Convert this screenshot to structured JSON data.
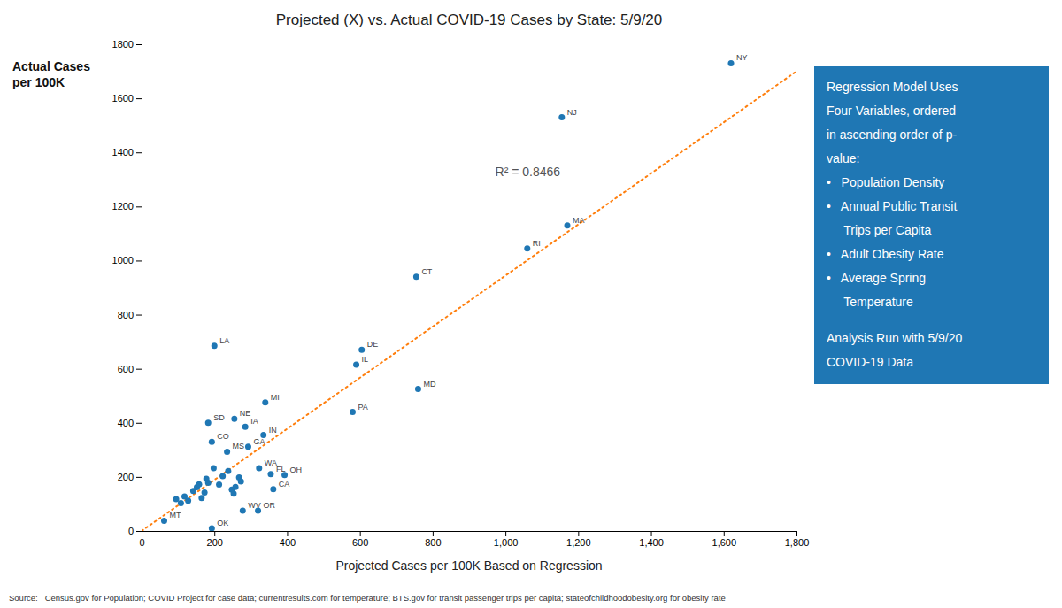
{
  "chart_data": {
    "type": "scatter",
    "title": "Projected (X) vs. Actual COVID-19 Cases by State: 5/9/20",
    "x_label": "Projected Cases per 100K Based on Regression",
    "y_label": "Actual Cases\nper 100K",
    "source": "Source:   Census.gov for Population; COVID Project for case data; currentresults.com for temperature; BTS.gov for transit passenger trips per capita; stateofchildhoodobesity.org for obesity rate",
    "annotations": [
      "R² = 0.8466"
    ],
    "note": [
      [
        "Regression Model Uses",
        "Four Variables, ordered",
        "in ascending order of p-",
        "value:",
        "•   Population Density",
        "•   Annual Public Transit",
        "     Trips per Capita",
        "•   Adult Obesity Rate",
        "•   Average Spring",
        "     Temperature"
      ],
      [
        "Analysis Run with 5/9/20",
        "COVID-19 Data"
      ]
    ],
    "xlim": [
      0,
      1800
    ],
    "ylim": [
      0,
      1800
    ],
    "xticks": [
      0,
      200,
      400,
      600,
      800,
      {
        "value": 1000,
        "label": "1,000"
      },
      {
        "value": 1200,
        "label": "1,200"
      },
      {
        "value": 1400,
        "label": "1,400"
      },
      {
        "value": 1600,
        "label": "1,600"
      },
      {
        "value": 1800,
        "label": "1,800"
      }
    ],
    "yticks": [
      0,
      200,
      400,
      600,
      800,
      1000,
      1200,
      1400,
      1600,
      1800
    ],
    "grid": false,
    "series": [
      {
        "type": "scatter",
        "marker": "circle",
        "x": [
          1620,
          1155,
          1170,
          1060,
          755,
          760,
          605,
          590,
          580,
          340,
          200,
          255,
          183,
          285,
          193,
          335,
          293,
          235,
          323,
          355,
          393,
          362,
          278,
          320,
          62,
          193,
          95,
          108,
          118,
          128,
          142,
          152,
          158,
          165,
          173,
          178,
          183,
          198,
          213,
          223,
          238,
          248,
          253,
          258,
          268,
          273
        ],
        "values": [
          1730,
          1530,
          1130,
          1045,
          940,
          525,
          670,
          615,
          440,
          475,
          685,
          415,
          400,
          385,
          330,
          355,
          312,
          293,
          232,
          210,
          207,
          155,
          75,
          75,
          38,
          10,
          118,
          103,
          128,
          112,
          148,
          162,
          173,
          122,
          142,
          193,
          178,
          232,
          172,
          203,
          222,
          153,
          138,
          163,
          198,
          183
        ],
        "labels": [
          "NY",
          "NJ",
          "MA",
          "RI",
          "CT",
          "MD",
          "DE",
          "IL",
          "PA",
          "MI",
          "LA",
          "NE",
          "SD",
          "IA",
          "CO",
          "IN",
          "GA",
          "MS",
          "WA",
          "FL",
          "OH",
          "CA",
          "WV",
          "OR",
          "MT",
          "OK",
          null,
          null,
          null,
          null,
          null,
          null,
          null,
          null,
          null,
          null,
          null,
          null,
          null,
          null,
          null,
          null,
          null,
          null,
          null,
          null
        ]
      },
      {
        "type": "line",
        "line_style": "dotted",
        "x": [
          0,
          1800
        ],
        "values": [
          0,
          1700
        ]
      }
    ]
  }
}
